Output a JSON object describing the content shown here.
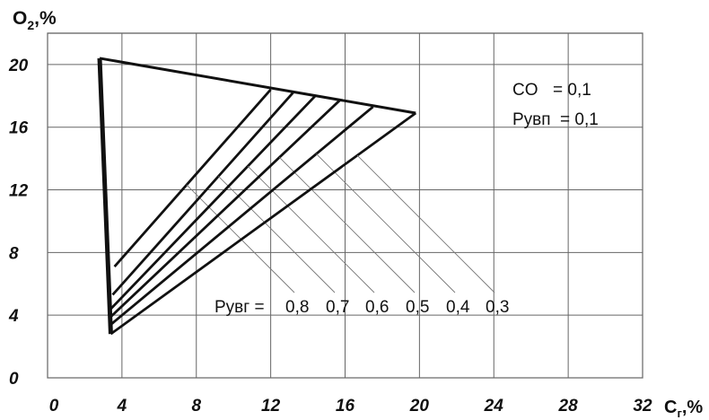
{
  "chart_data": {
    "type": "line",
    "ylabel": "O",
    "ylabel_sub": "2",
    "ylabel_unit": ",%",
    "xlabel": "C",
    "xlabel_sub": "г",
    "xlabel_unit": ",%",
    "xlim": [
      0,
      32
    ],
    "ylim": [
      0,
      22
    ],
    "xticks": [
      0,
      4,
      8,
      12,
      16,
      20,
      24,
      28,
      32
    ],
    "yticks": [
      0,
      4,
      8,
      12,
      16,
      20
    ],
    "grid": true,
    "boundary": {
      "top_left": [
        2.8,
        20.4
      ],
      "right": [
        19.8,
        16.9
      ],
      "bottom": [
        3.4,
        2.8
      ]
    },
    "series": [
      {
        "label": "0,8",
        "points": [
          [
            3.6,
            7.1
          ],
          [
            12.0,
            18.4
          ]
        ]
      },
      {
        "label": "0,7",
        "points": [
          [
            3.5,
            5.3
          ],
          [
            13.2,
            18.2
          ]
        ]
      },
      {
        "label": "0,6",
        "points": [
          [
            3.4,
            4.4
          ],
          [
            14.4,
            18.0
          ]
        ]
      },
      {
        "label": "0,5",
        "points": [
          [
            3.4,
            3.9
          ],
          [
            15.7,
            17.7
          ]
        ]
      },
      {
        "label": "0,4",
        "points": [
          [
            3.4,
            3.4
          ],
          [
            17.5,
            17.3
          ]
        ]
      },
      {
        "label": "0,3",
        "points": [
          [
            3.4,
            2.8
          ],
          [
            19.8,
            16.9
          ]
        ]
      }
    ],
    "series_prefix": "Pуʙг =",
    "annotations": {
      "co_label": "CO",
      "co_value": "= 0,1",
      "pub_label": "Pуʙп",
      "pub_value": "= 0,1"
    }
  }
}
